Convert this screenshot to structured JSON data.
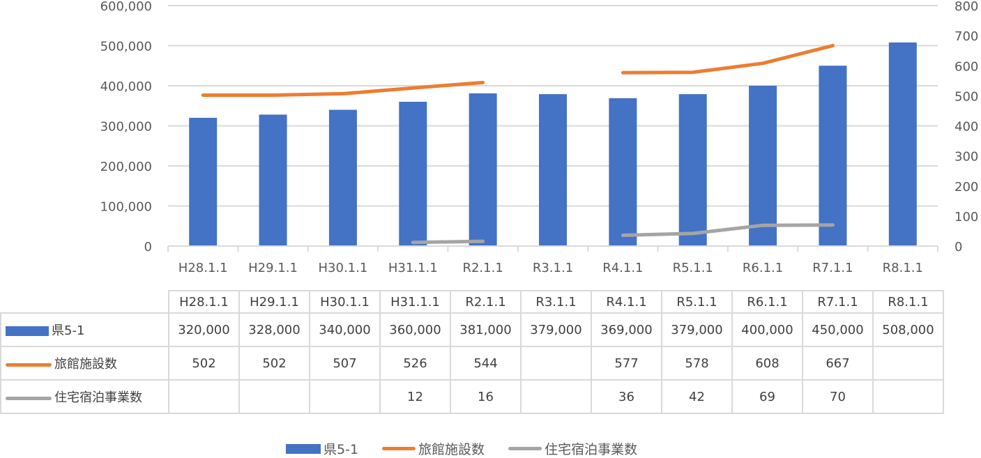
{
  "chart_data": {
    "type": "bar",
    "title": "",
    "categories": [
      "H28.1.1",
      "H29.1.1",
      "H30.1.1",
      "H31.1.1",
      "R2.1.1",
      "R3.1.1",
      "R4.1.1",
      "R5.1.1",
      "R6.1.1",
      "R7.1.1",
      "R8.1.1"
    ],
    "series": [
      {
        "name": "県5-1",
        "type": "bar",
        "axis": "left",
        "color": "#4472C4",
        "values": [
          320000,
          328000,
          340000,
          360000,
          381000,
          379000,
          369000,
          379000,
          400000,
          450000,
          508000
        ]
      },
      {
        "name": "旅館施設数",
        "type": "line",
        "axis": "right",
        "color": "#ED7D31",
        "values": [
          502,
          502,
          507,
          526,
          544,
          null,
          577,
          578,
          608,
          667,
          null
        ]
      },
      {
        "name": "住宅宿泊事業数",
        "type": "line",
        "axis": "right",
        "color": "#A5A5A5",
        "values": [
          null,
          null,
          null,
          12,
          16,
          null,
          36,
          42,
          69,
          70,
          null
        ]
      }
    ],
    "y_left": {
      "ticks": [
        "0",
        "100,000",
        "200,000",
        "300,000",
        "400,000",
        "500,000",
        "600,000"
      ],
      "ylim": [
        0,
        600000
      ]
    },
    "y_right": {
      "ticks": [
        "0",
        "100",
        "200",
        "300",
        "400",
        "500",
        "600",
        "700",
        "800"
      ],
      "ylim": [
        0,
        800
      ]
    },
    "grid": true,
    "legend_position": "bottom",
    "has_data_table": true
  },
  "table": {
    "headers": [
      "H28.1.1",
      "H29.1.1",
      "H30.1.1",
      "H31.1.1",
      "R2.1.1",
      "R3.1.1",
      "R4.1.1",
      "R5.1.1",
      "R6.1.1",
      "R7.1.1",
      "R8.1.1"
    ],
    "rows": [
      {
        "label": "県5-1",
        "cells": [
          "320,000",
          "328,000",
          "340,000",
          "360,000",
          "381,000",
          "379,000",
          "369,000",
          "379,000",
          "400,000",
          "450,000",
          "508,000"
        ]
      },
      {
        "label": "旅館施設数",
        "cells": [
          "502",
          "502",
          "507",
          "526",
          "544",
          "",
          "577",
          "578",
          "608",
          "667",
          ""
        ]
      },
      {
        "label": "住宅宿泊事業数",
        "cells": [
          "",
          "",
          "",
          "12",
          "16",
          "",
          "36",
          "42",
          "69",
          "70",
          ""
        ]
      }
    ]
  },
  "legend": {
    "items": [
      {
        "label": "県5-1",
        "color": "#4472C4",
        "icon": "bar-swatch-icon"
      },
      {
        "label": "旅館施設数",
        "color": "#ED7D31",
        "icon": "line-swatch-icon"
      },
      {
        "label": "住宅宿泊事業数",
        "color": "#A5A5A5",
        "icon": "line-swatch-icon"
      }
    ]
  }
}
